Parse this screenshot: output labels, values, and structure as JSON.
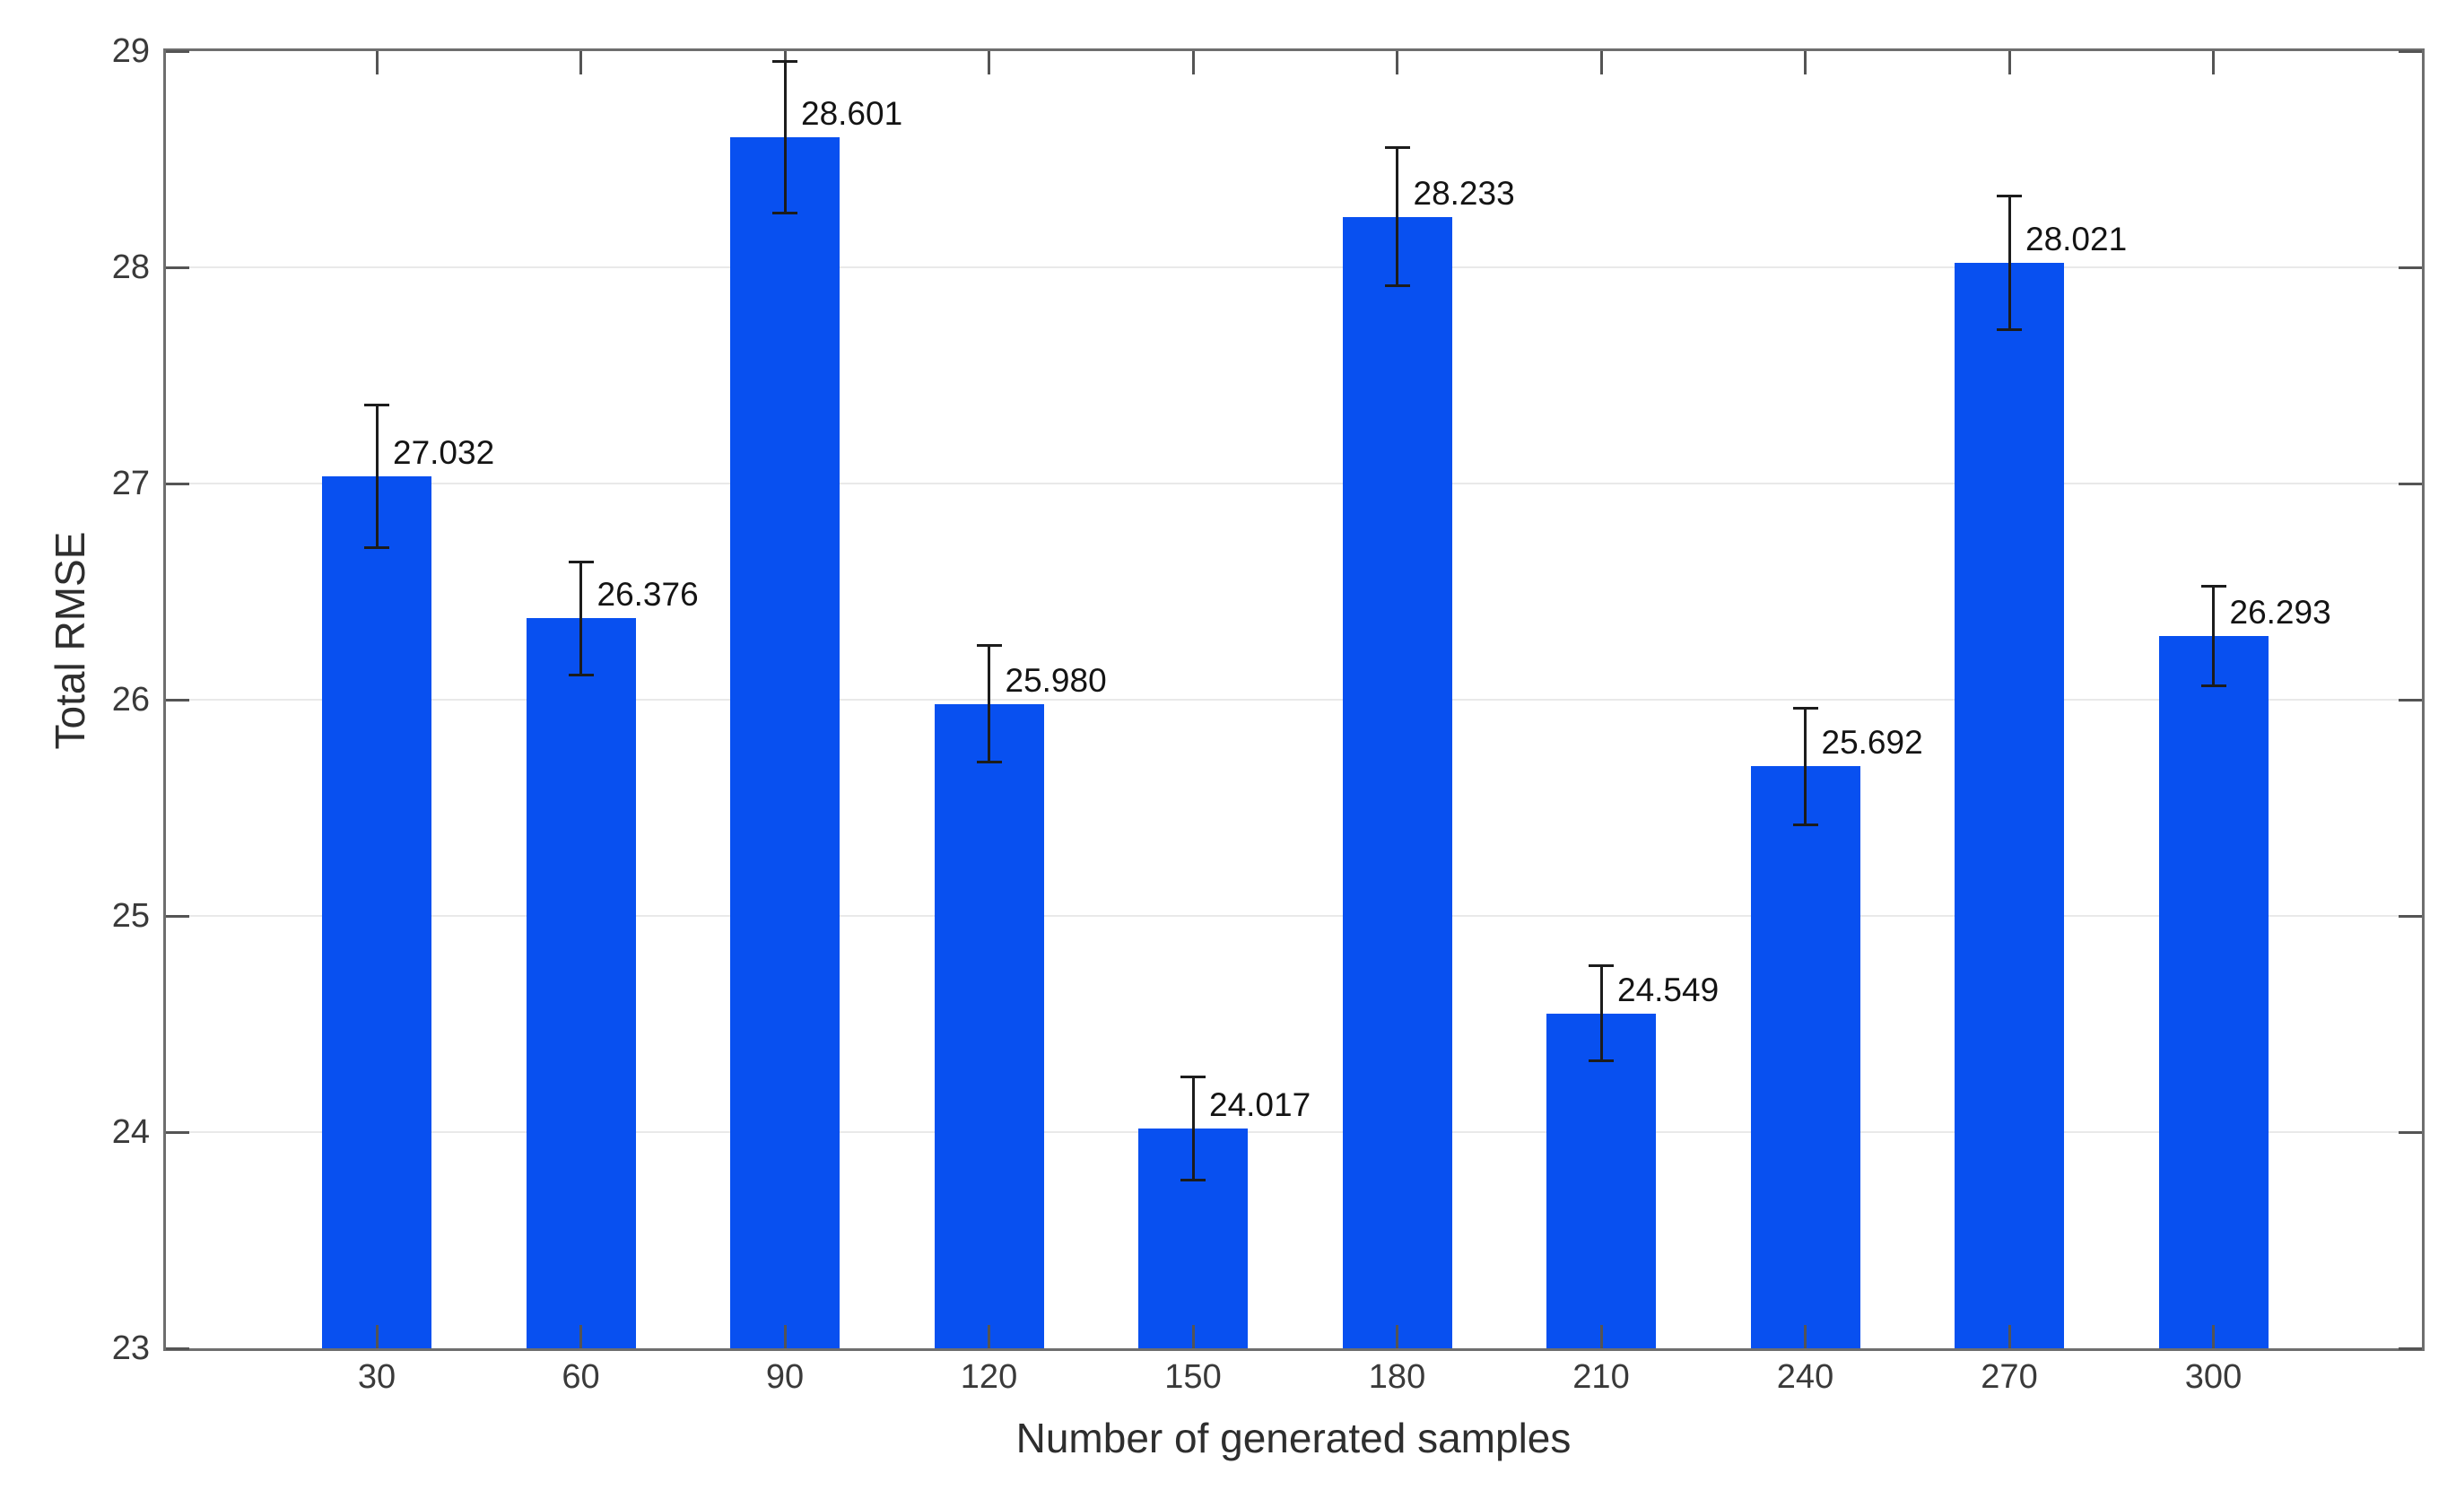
{
  "chart_data": {
    "type": "bar",
    "title": "",
    "xlabel": "Number of generated samples",
    "ylabel": "Total RMSE",
    "categories": [
      "30",
      "60",
      "90",
      "120",
      "150",
      "180",
      "210",
      "240",
      "270",
      "300"
    ],
    "values": [
      27.032,
      26.376,
      28.601,
      25.98,
      24.017,
      28.233,
      24.549,
      25.692,
      28.021,
      26.293
    ],
    "value_labels": [
      "27.032",
      "26.376",
      "28.601",
      "25.980",
      "24.017",
      "28.233",
      "24.549",
      "25.692",
      "28.021",
      "26.293"
    ],
    "error_bars": [
      0.33,
      0.26,
      0.35,
      0.27,
      0.24,
      0.32,
      0.22,
      0.27,
      0.31,
      0.23
    ],
    "ylim": [
      23,
      29
    ],
    "yticks": [
      23,
      24,
      25,
      26,
      27,
      28,
      29
    ],
    "gridlines_at": [
      24,
      25,
      26,
      27,
      28
    ],
    "grid": "horizontal",
    "legend": "none",
    "colors": {
      "bar": "#0850f0",
      "error_bar": "#1c1c1c",
      "axis_box": "#6e6e6e",
      "gridline": "#e9e9e9",
      "tick": "#545454",
      "tick_label": "#3a3a3a",
      "value_label": "#141414",
      "background": "#ffffff"
    }
  }
}
